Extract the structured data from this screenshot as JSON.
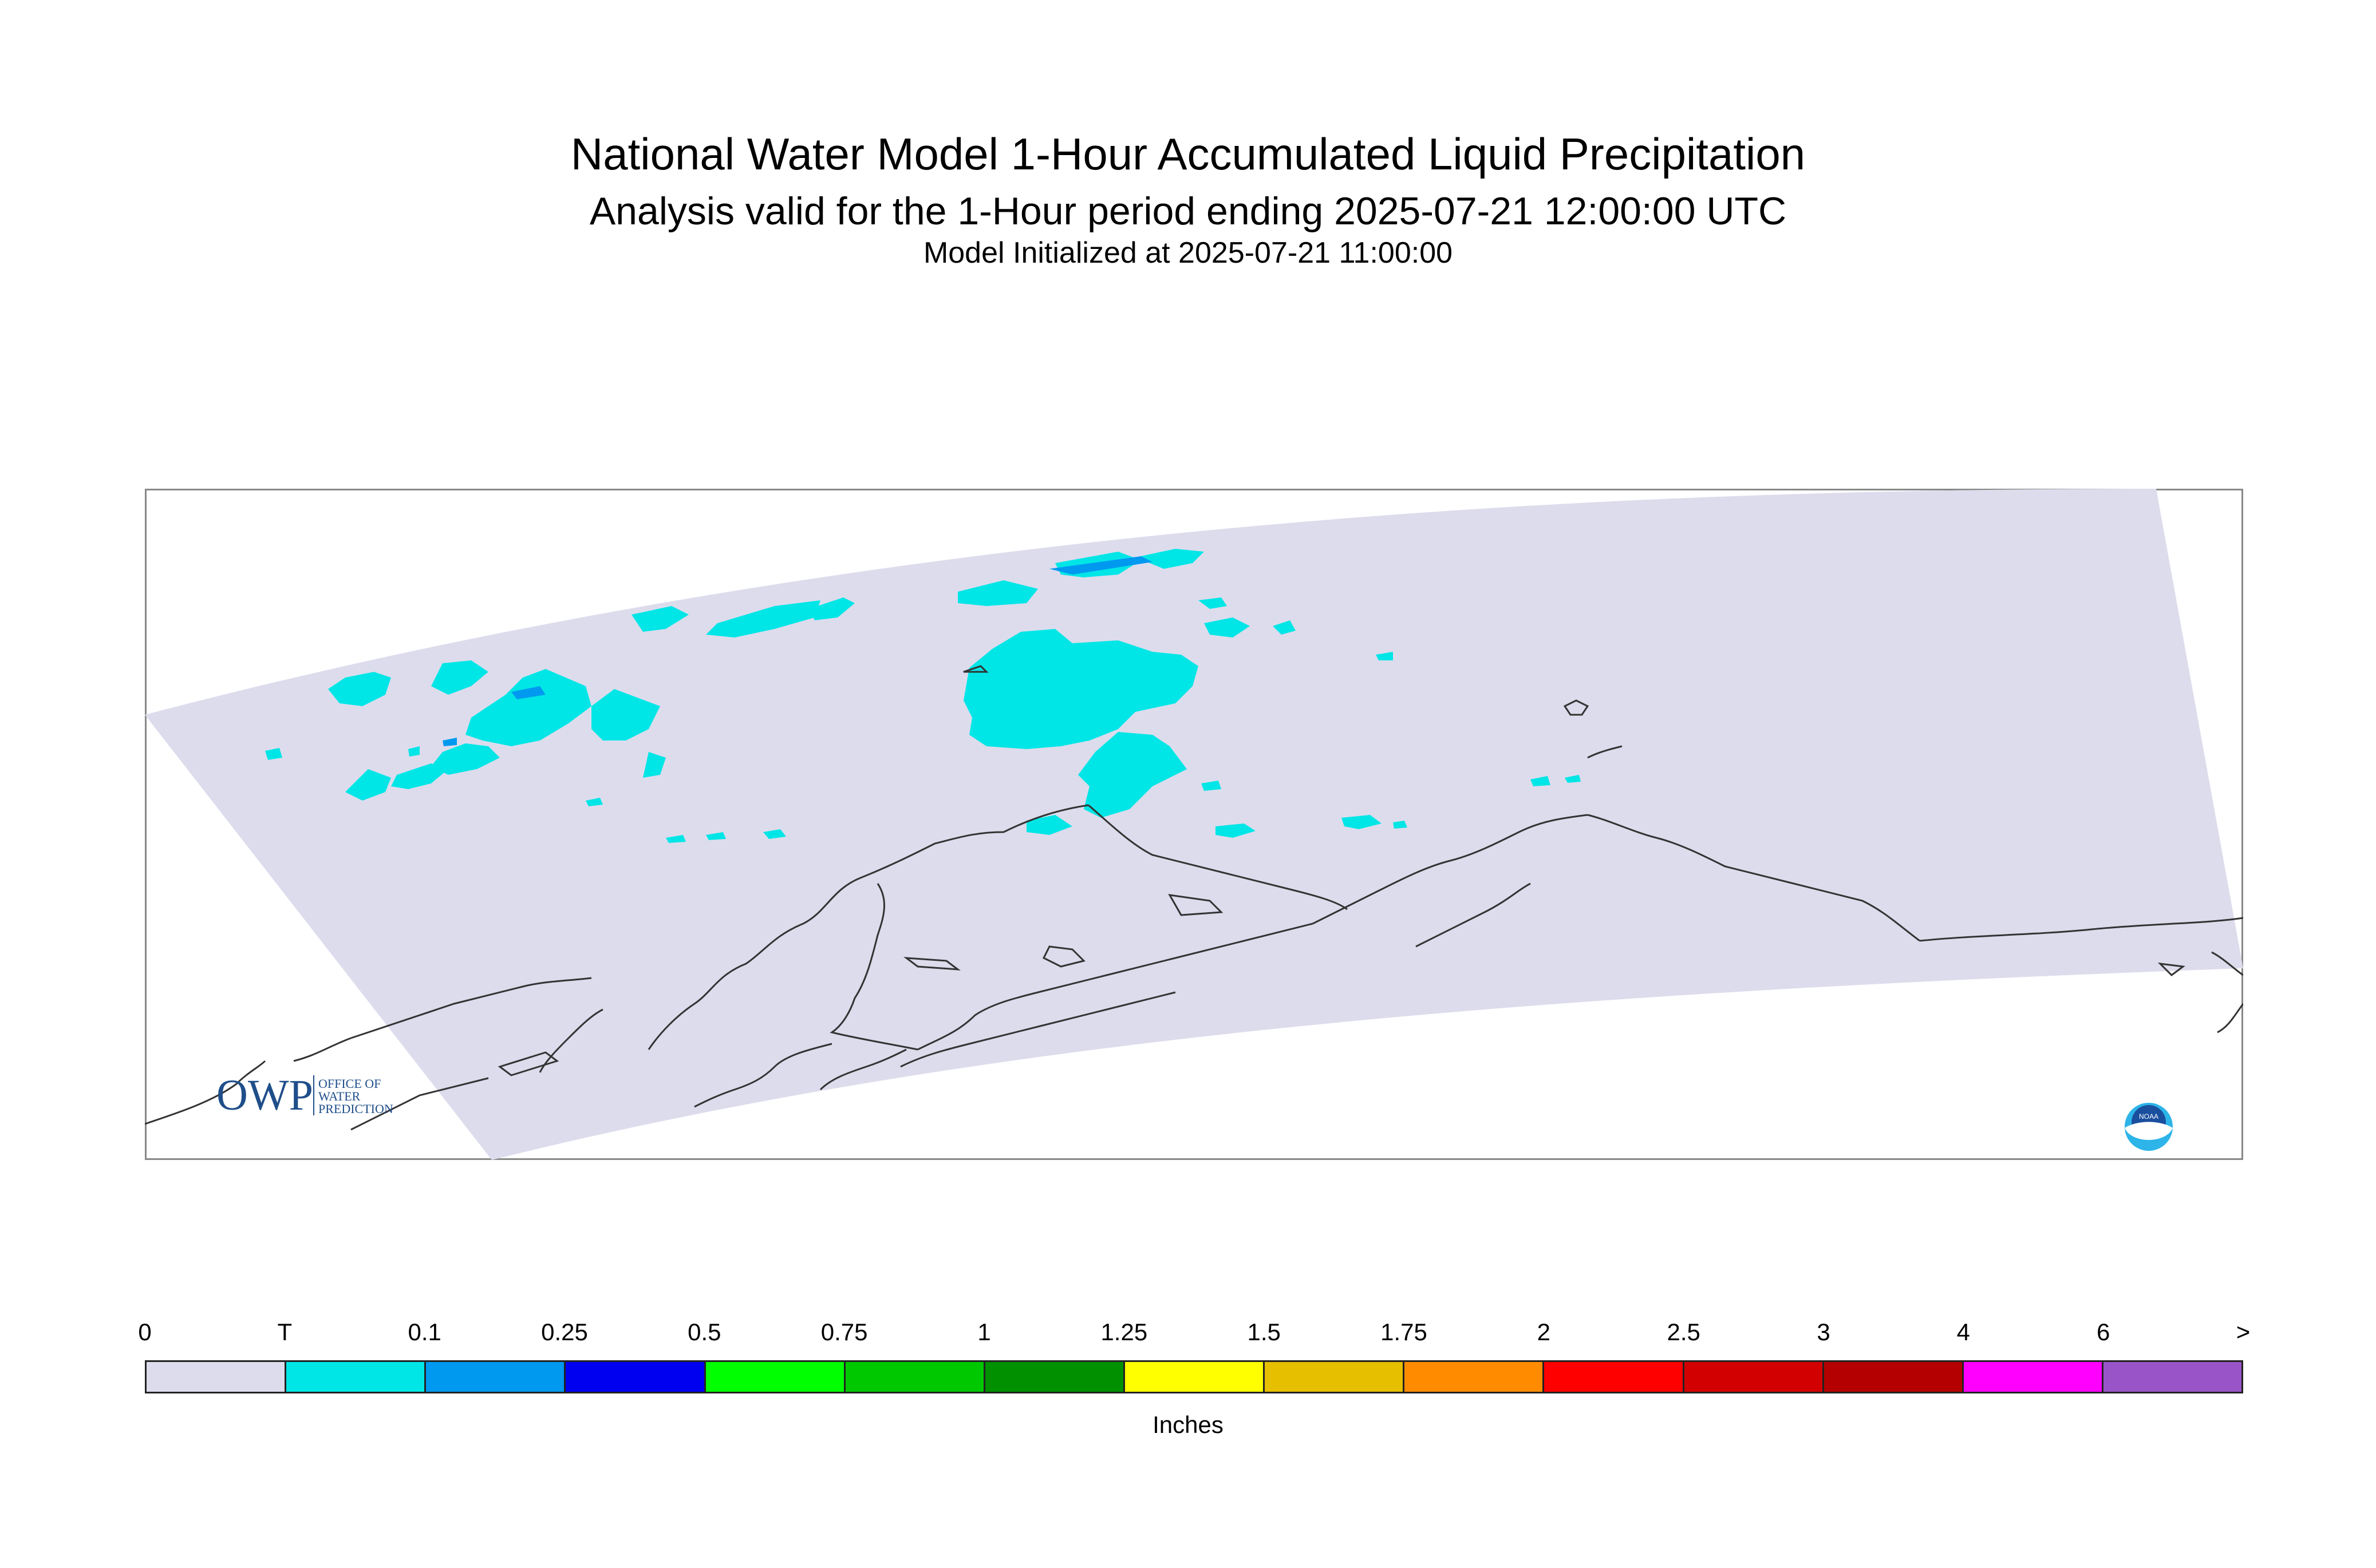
{
  "header": {
    "title": "National Water Model 1-Hour Accumulated Liquid Precipitation",
    "subtitle": "Analysis valid for the 1-Hour period ending 2025-07-21 12:00:00 UTC",
    "init": "Model Initialized at 2025-07-21 11:00:00"
  },
  "map": {
    "region": "Alaska",
    "domain_fill": "#dcdced",
    "frame_color": "#888888",
    "coast_color": "#333333",
    "precip_colors": {
      "trace": "#00e6e6",
      "light": "#0099f0"
    }
  },
  "logos": {
    "owp": {
      "mark": "OWP",
      "lines": [
        "OFFICE OF",
        "WATER",
        "PREDICTION"
      ],
      "color": "#1f4e8a"
    },
    "noaa": {
      "text": "NOAA",
      "colors": [
        "#1a4f9e",
        "#2db4e8"
      ]
    }
  },
  "legend": {
    "labels": [
      "0",
      "T",
      "0.1",
      "0.25",
      "0.5",
      "0.75",
      "1",
      "1.25",
      "1.5",
      "1.75",
      "2",
      "2.5",
      "3",
      "4",
      "6",
      ">"
    ],
    "colors": [
      "#dcdced",
      "#00e6e6",
      "#0099f0",
      "#0000f0",
      "#00ff00",
      "#00c800",
      "#009000",
      "#ffff00",
      "#e6bf00",
      "#ff8c00",
      "#ff0000",
      "#d20000",
      "#b40000",
      "#ff00ff",
      "#9955c8"
    ],
    "units": "Inches"
  }
}
